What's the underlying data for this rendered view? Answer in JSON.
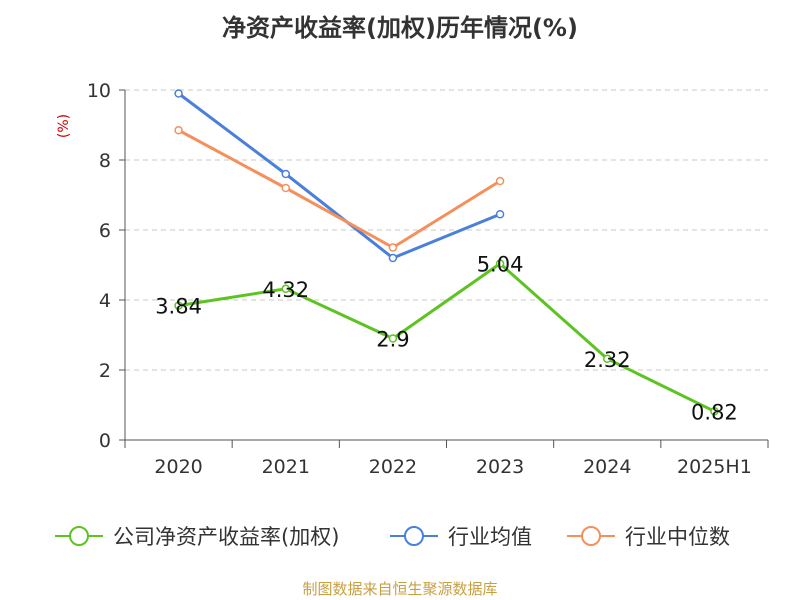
{
  "chart_data": {
    "type": "line",
    "title": "净资产收益率(加权)历年情况(%)",
    "ylabel": "(%)",
    "xlabel": "",
    "categories": [
      "2020",
      "2021",
      "2022",
      "2023",
      "2024",
      "2025H1"
    ],
    "ylim": [
      0,
      10
    ],
    "yticks": [
      0,
      2,
      4,
      6,
      8,
      10
    ],
    "grid": true,
    "legend_position": "bottom",
    "series": [
      {
        "name": "公司净资产收益率(加权)",
        "color": "#5cc320",
        "values": [
          3.84,
          4.32,
          2.9,
          5.04,
          2.32,
          0.82
        ],
        "labels": [
          "3.84",
          "4.32",
          "2.9",
          "5.04",
          "2.32",
          "0.82"
        ]
      },
      {
        "name": "行业均值",
        "color": "#4a7fdc",
        "values": [
          9.9,
          7.6,
          5.2,
          6.45,
          null,
          null
        ]
      },
      {
        "name": "行业中位数",
        "color": "#f5905c",
        "values": [
          8.85,
          7.2,
          5.5,
          7.4,
          null,
          null
        ]
      }
    ]
  },
  "source": "制图数据来自恒生聚源数据库"
}
